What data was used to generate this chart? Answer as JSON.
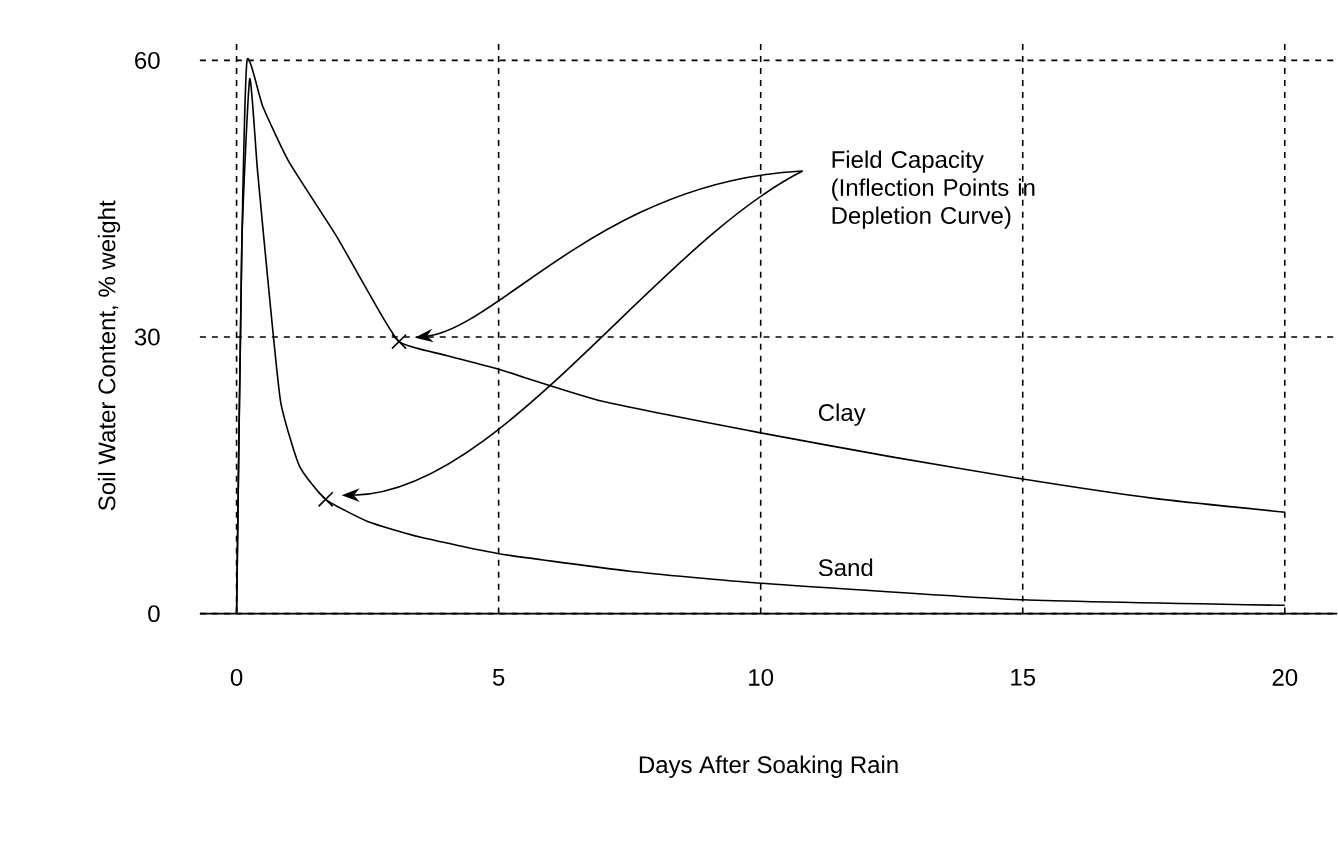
{
  "chart_data": {
    "type": "line",
    "xlabel": "Days After Soaking Rain",
    "ylabel": "Soil Water Content, % weight",
    "xlim": [
      -0.7,
      21
    ],
    "ylim": [
      0,
      62
    ],
    "xticks": [
      0,
      5,
      10,
      15,
      20
    ],
    "yticks": [
      0,
      30,
      60
    ],
    "grid": true,
    "annotations": [
      "Field Capacity (Inflection Points in Depletion Curve)"
    ],
    "series": [
      {
        "name": "Clay",
        "color": "#000000",
        "x": [
          0,
          0.1,
          0.2,
          0.5,
          1,
          1.9,
          2.5,
          3.1,
          4,
          5,
          7,
          10,
          12.5,
          15,
          17.5,
          20
        ],
        "values": [
          0,
          40,
          60,
          55,
          49,
          41,
          35,
          29.5,
          28,
          26.5,
          23,
          19.6,
          17,
          14.6,
          12.5,
          11
        ]
      },
      {
        "name": "Sand",
        "color": "#000000",
        "x": [
          0,
          0.1,
          0.25,
          0.4,
          0.6,
          0.84,
          1.2,
          1.7,
          2.5,
          3.5,
          5,
          7.5,
          10,
          15,
          20
        ],
        "values": [
          0,
          40,
          58,
          48,
          36,
          23,
          16,
          12.4,
          10,
          8.3,
          6.5,
          4.6,
          3.3,
          1.5,
          0.9
        ]
      },
      {
        "type": "scatter",
        "marker": "cross",
        "color": "#000000",
        "x": [
          3.1,
          1.7
        ],
        "values": [
          29.5,
          12.4
        ]
      }
    ]
  }
}
